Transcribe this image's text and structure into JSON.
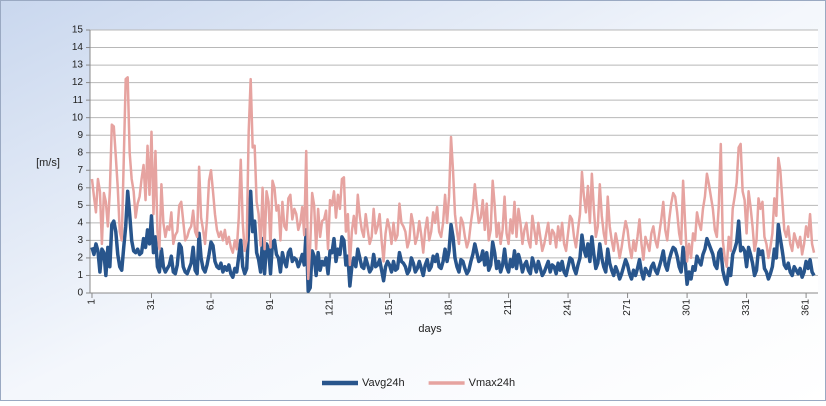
{
  "chart_data": {
    "type": "line",
    "y_label": "[m/s]",
    "x_label": "days",
    "x": [
      1,
      2,
      3,
      4,
      5,
      6,
      7,
      8,
      9,
      10,
      11,
      12,
      13,
      14,
      15,
      16,
      17,
      18,
      19,
      20,
      21,
      22,
      23,
      24,
      25,
      26,
      27,
      28,
      29,
      30,
      31,
      32,
      33,
      34,
      35,
      36,
      37,
      38,
      39,
      40,
      41,
      42,
      43,
      44,
      45,
      46,
      47,
      48,
      49,
      50,
      51,
      52,
      53,
      54,
      55,
      56,
      57,
      58,
      59,
      60,
      61,
      62,
      63,
      64,
      65,
      66,
      67,
      68,
      69,
      70,
      71,
      72,
      73,
      74,
      75,
      76,
      77,
      78,
      79,
      80,
      81,
      82,
      83,
      84,
      85,
      86,
      87,
      88,
      89,
      90,
      91,
      92,
      93,
      94,
      95,
      96,
      97,
      98,
      99,
      100,
      101,
      102,
      103,
      104,
      105,
      106,
      107,
      108,
      109,
      110,
      111,
      112,
      113,
      114,
      115,
      116,
      117,
      118,
      119,
      120,
      121,
      122,
      123,
      124,
      125,
      126,
      127,
      128,
      129,
      130,
      131,
      132,
      133,
      134,
      135,
      136,
      137,
      138,
      139,
      140,
      141,
      142,
      143,
      144,
      145,
      146,
      147,
      148,
      149,
      150,
      151,
      152,
      153,
      154,
      155,
      156,
      157,
      158,
      159,
      160,
      161,
      162,
      163,
      164,
      165,
      166,
      167,
      168,
      169,
      170,
      171,
      172,
      173,
      174,
      175,
      176,
      177,
      178,
      179,
      180,
      181,
      182,
      183,
      184,
      185,
      186,
      187,
      188,
      189,
      190,
      191,
      192,
      193,
      194,
      195,
      196,
      197,
      198,
      199,
      200,
      201,
      202,
      203,
      204,
      205,
      206,
      207,
      208,
      209,
      210,
      211,
      212,
      213,
      214,
      215,
      216,
      217,
      218,
      219,
      220,
      221,
      222,
      223,
      224,
      225,
      226,
      227,
      228,
      229,
      230,
      231,
      232,
      233,
      234,
      235,
      236,
      237,
      238,
      239,
      240,
      241,
      242,
      243,
      244,
      245,
      246,
      247,
      248,
      249,
      250,
      251,
      252,
      253,
      254,
      255,
      256,
      257,
      258,
      259,
      260,
      261,
      262,
      263,
      264,
      265,
      266,
      267,
      268,
      269,
      270,
      271,
      272,
      273,
      274,
      275,
      276,
      277,
      278,
      279,
      280,
      281,
      282,
      283,
      284,
      285,
      286,
      287,
      288,
      289,
      290,
      291,
      292,
      293,
      294,
      295,
      296,
      297,
      298,
      299,
      300,
      301,
      302,
      303,
      304,
      305,
      306,
      307,
      308,
      309,
      310,
      311,
      312,
      313,
      314,
      315,
      316,
      317,
      318,
      319,
      320,
      321,
      322,
      323,
      324,
      325,
      326,
      327,
      328,
      329,
      330,
      331,
      332,
      333,
      334,
      335,
      336,
      337,
      338,
      339,
      340,
      341,
      342,
      343,
      344,
      345,
      346,
      347,
      348,
      349,
      350,
      351,
      352,
      353,
      354,
      355,
      356,
      357,
      358,
      359,
      360,
      361,
      362,
      363,
      364,
      365
    ],
    "series": [
      {
        "name": "Vavg24h",
        "color": "#28558c",
        "width": 3.5,
        "values": [
          2.6,
          2.2,
          2.8,
          2.4,
          1.2,
          2.5,
          2.3,
          1.0,
          2.6,
          1.5,
          3.9,
          4.1,
          3.5,
          2.2,
          1.5,
          1.3,
          2.6,
          3.8,
          5.8,
          4.5,
          3.0,
          2.4,
          2.3,
          2.5,
          2.2,
          2.3,
          3.1,
          2.6,
          3.6,
          2.8,
          4.4,
          2.3,
          3.2,
          1.5,
          1.2,
          2.5,
          1.5,
          1.2,
          1.4,
          1.6,
          2.1,
          1.2,
          1.1,
          1.6,
          2.8,
          2.6,
          1.5,
          1.2,
          1.1,
          1.4,
          1.7,
          2.6,
          1.3,
          1.1,
          3.4,
          2.0,
          1.4,
          1.2,
          1.6,
          2.2,
          2.9,
          2.7,
          1.8,
          1.5,
          1.4,
          1.7,
          1.2,
          1.5,
          1.3,
          1.6,
          1.1,
          0.9,
          1.4,
          1.2,
          2.1,
          3.0,
          1.5,
          1.1,
          1.4,
          3.8,
          5.8,
          3.5,
          4.1,
          2.3,
          1.9,
          1.2,
          3.1,
          1.1,
          2.8,
          2.5,
          1.1,
          2.9,
          3.0,
          2.2,
          2.0,
          1.2,
          2.3,
          1.8,
          1.5,
          2.3,
          2.5,
          1.8,
          2.0,
          1.9,
          1.5,
          1.8,
          2.2,
          1.6,
          3.6,
          0.1,
          0.3,
          2.4,
          2.1,
          1.0,
          2.3,
          1.3,
          1.8,
          1.6,
          2.0,
          1.1,
          2.4,
          2.3,
          3.1,
          1.8,
          2.5,
          2.2,
          3.2,
          3.0,
          1.6,
          2.1,
          0.4,
          1.5,
          2.0,
          1.5,
          2.5,
          2.0,
          1.5,
          1.4,
          2.0,
          1.6,
          1.2,
          1.4,
          2.2,
          1.5,
          1.6,
          1.9,
          1.3,
          0.7,
          1.5,
          1.8,
          1.6,
          1.2,
          1.8,
          1.3,
          1.4,
          2.3,
          1.8,
          1.7,
          1.5,
          1.1,
          1.3,
          2.0,
          1.7,
          1.2,
          1.4,
          1.8,
          1.4,
          1.0,
          1.6,
          1.9,
          1.3,
          1.5,
          2.1,
          1.8,
          2.2,
          1.5,
          1.4,
          1.8,
          2.5,
          1.8,
          2.4,
          3.9,
          3.2,
          2.0,
          1.5,
          1.2,
          1.9,
          1.8,
          1.4,
          1.1,
          1.3,
          1.8,
          2.2,
          2.8,
          2.3,
          1.8,
          1.9,
          2.4,
          1.6,
          2.3,
          1.3,
          1.6,
          2.9,
          2.3,
          1.4,
          1.8,
          1.2,
          1.6,
          2.5,
          1.5,
          1.2,
          1.9,
          1.5,
          2.4,
          1.4,
          2.2,
          1.8,
          1.2,
          1.6,
          1.8,
          1.3,
          1.1,
          2.0,
          1.6,
          1.2,
          1.8,
          1.4,
          1.0,
          1.2,
          1.5,
          1.8,
          1.2,
          1.6,
          1.5,
          1.1,
          1.7,
          1.3,
          1.8,
          1.2,
          1.0,
          1.5,
          2.0,
          1.9,
          1.4,
          1.1,
          1.6,
          2.0,
          3.3,
          2.5,
          2.1,
          2.8,
          1.8,
          3.2,
          2.2,
          1.4,
          1.7,
          2.8,
          2.0,
          1.5,
          1.2,
          2.5,
          1.7,
          1.3,
          1.0,
          1.5,
          1.2,
          0.8,
          1.1,
          1.5,
          1.9,
          1.6,
          1.1,
          0.8,
          1.3,
          1.0,
          1.4,
          1.9,
          1.2,
          0.8,
          1.4,
          1.2,
          1.0,
          1.5,
          1.7,
          1.3,
          1.1,
          1.5,
          1.9,
          2.4,
          1.6,
          1.3,
          1.9,
          2.3,
          2.6,
          2.5,
          2.1,
          1.5,
          1.2,
          2.6,
          1.8,
          0.5,
          1.2,
          0.8,
          1.5,
          1.3,
          2.1,
          1.8,
          1.6,
          2.2,
          2.5,
          3.1,
          2.8,
          2.5,
          2.2,
          1.6,
          1.4,
          2.3,
          2.5,
          1.3,
          0.8,
          0.5,
          1.4,
          1.0,
          2.2,
          2.5,
          2.9,
          4.1,
          2.4,
          2.6,
          2.4,
          1.5,
          2.6,
          2.2,
          1.7,
          1.0,
          1.3,
          2.5,
          2.2,
          2.4,
          1.4,
          1.2,
          0.8,
          1.1,
          1.5,
          2.5,
          2.0,
          3.9,
          3.1,
          2.4,
          1.6,
          1.4,
          1.7,
          1.2,
          1.0,
          1.5,
          1.3,
          1.1,
          1.4,
          0.9,
          1.2,
          1.8,
          1.4,
          1.9,
          1.2,
          1.0
        ]
      },
      {
        "name": "Vmax24h",
        "color": "#e6a3a0",
        "width": 2.5,
        "values": [
          6.5,
          5.5,
          4.6,
          6.5,
          5.8,
          2.8,
          5.7,
          5.2,
          3.8,
          5.8,
          9.6,
          9.5,
          7.8,
          6.0,
          3.5,
          3.0,
          7.5,
          12.2,
          12.3,
          8.0,
          6.5,
          5.8,
          4.3,
          5.1,
          5.5,
          6.5,
          7.3,
          5.3,
          8.4,
          5.6,
          9.2,
          4.5,
          8.1,
          3.5,
          2.5,
          6.2,
          4.0,
          3.2,
          3.8,
          3.6,
          4.6,
          2.8,
          3.3,
          3.5,
          5.0,
          5.2,
          4.1,
          3.0,
          3.2,
          3.6,
          3.8,
          4.7,
          3.5,
          3.2,
          7.2,
          4.3,
          3.6,
          2.8,
          4.2,
          6.4,
          7.0,
          5.8,
          4.5,
          3.6,
          3.2,
          3.5,
          3.0,
          3.6,
          2.8,
          3.2,
          2.6,
          2.3,
          3.0,
          2.5,
          4.3,
          7.6,
          4.0,
          2.4,
          3.0,
          9.2,
          12.2,
          8.3,
          8.4,
          5.2,
          4.5,
          2.7,
          6.0,
          2.5,
          5.8,
          5.2,
          2.6,
          6.4,
          6.0,
          4.7,
          5.0,
          3.0,
          5.2,
          3.8,
          3.6,
          5.4,
          5.6,
          4.2,
          4.8,
          4.5,
          3.6,
          4.0,
          4.9,
          3.3,
          8.1,
          0.8,
          2.7,
          5.7,
          5.0,
          2.5,
          4.8,
          3.2,
          4.1,
          4.2,
          4.7,
          2.5,
          5.3,
          5.0,
          5.8,
          4.3,
          5.6,
          4.8,
          6.5,
          6.6,
          3.5,
          4.5,
          1.6,
          3.5,
          4.4,
          3.4,
          5.6,
          4.4,
          3.6,
          3.2,
          4.5,
          3.6,
          2.8,
          3.2,
          4.8,
          3.4,
          3.8,
          4.5,
          3.0,
          1.8,
          3.4,
          4.2,
          3.7,
          2.8,
          4.0,
          3.0,
          3.3,
          5.1,
          4.0,
          3.8,
          3.5,
          2.6,
          3.0,
          4.5,
          3.9,
          2.8,
          3.2,
          4.1,
          3.3,
          2.3,
          3.6,
          4.3,
          3.0,
          3.5,
          4.6,
          4.0,
          4.9,
          3.5,
          3.2,
          4.0,
          5.6,
          4.0,
          5.5,
          8.9,
          7.0,
          4.5,
          3.5,
          2.8,
          4.3,
          4.0,
          3.2,
          2.6,
          3.0,
          4.0,
          4.8,
          6.2,
          5.0,
          4.0,
          4.3,
          5.3,
          3.6,
          5.1,
          3.0,
          3.6,
          6.4,
          5.0,
          3.2,
          4.0,
          2.8,
          3.6,
          5.5,
          3.4,
          2.8,
          4.2,
          3.4,
          5.2,
          3.2,
          4.8,
          4.0,
          2.8,
          3.6,
          4.0,
          3.0,
          2.6,
          4.4,
          3.6,
          2.8,
          4.0,
          3.2,
          2.4,
          2.8,
          3.4,
          4.0,
          2.8,
          3.6,
          3.4,
          2.6,
          3.8,
          3.0,
          4.0,
          2.8,
          2.4,
          3.4,
          4.4,
          4.2,
          3.2,
          2.6,
          3.6,
          4.5,
          6.9,
          5.5,
          4.6,
          6.1,
          4.0,
          6.8,
          4.8,
          3.2,
          3.8,
          6.2,
          4.4,
          3.4,
          2.8,
          5.5,
          3.8,
          3.0,
          2.4,
          3.4,
          2.8,
          2.0,
          2.6,
          3.4,
          4.1,
          3.6,
          2.6,
          2.0,
          3.0,
          2.4,
          3.2,
          4.2,
          2.8,
          1.9,
          3.2,
          2.8,
          2.4,
          3.4,
          3.8,
          3.0,
          2.6,
          3.4,
          4.2,
          5.2,
          3.6,
          3.0,
          4.2,
          5.1,
          5.7,
          5.5,
          4.6,
          3.4,
          2.8,
          6.4,
          4.0,
          1.8,
          2.8,
          2.0,
          3.4,
          3.0,
          4.6,
          4.0,
          3.6,
          4.8,
          5.5,
          6.8,
          6.2,
          5.5,
          4.8,
          3.6,
          3.2,
          5.0,
          8.5,
          3.0,
          2.0,
          1.5,
          3.2,
          2.4,
          4.8,
          5.5,
          6.3,
          8.3,
          8.5,
          5.8,
          5.3,
          3.4,
          5.8,
          4.9,
          3.8,
          2.4,
          3.0,
          5.4,
          4.8,
          5.2,
          3.2,
          2.8,
          2.0,
          2.6,
          3.4,
          5.4,
          4.4,
          7.7,
          7.0,
          5.3,
          3.6,
          3.2,
          3.8,
          2.8,
          2.4,
          3.4,
          3.0,
          2.6,
          3.2,
          2.2,
          2.8,
          3.8,
          3.2,
          4.5,
          2.8,
          2.3
        ]
      }
    ],
    "xlim": [
      0,
      367
    ],
    "xticks": [
      1,
      31,
      61,
      91,
      121,
      151,
      181,
      211,
      241,
      271,
      301,
      331,
      361
    ],
    "ylim": [
      0,
      15
    ],
    "yticks": [
      0,
      1,
      2,
      3,
      4,
      5,
      6,
      7,
      8,
      9,
      10,
      11,
      12,
      13,
      14,
      15
    ],
    "grid": true,
    "legend": "bottom"
  }
}
